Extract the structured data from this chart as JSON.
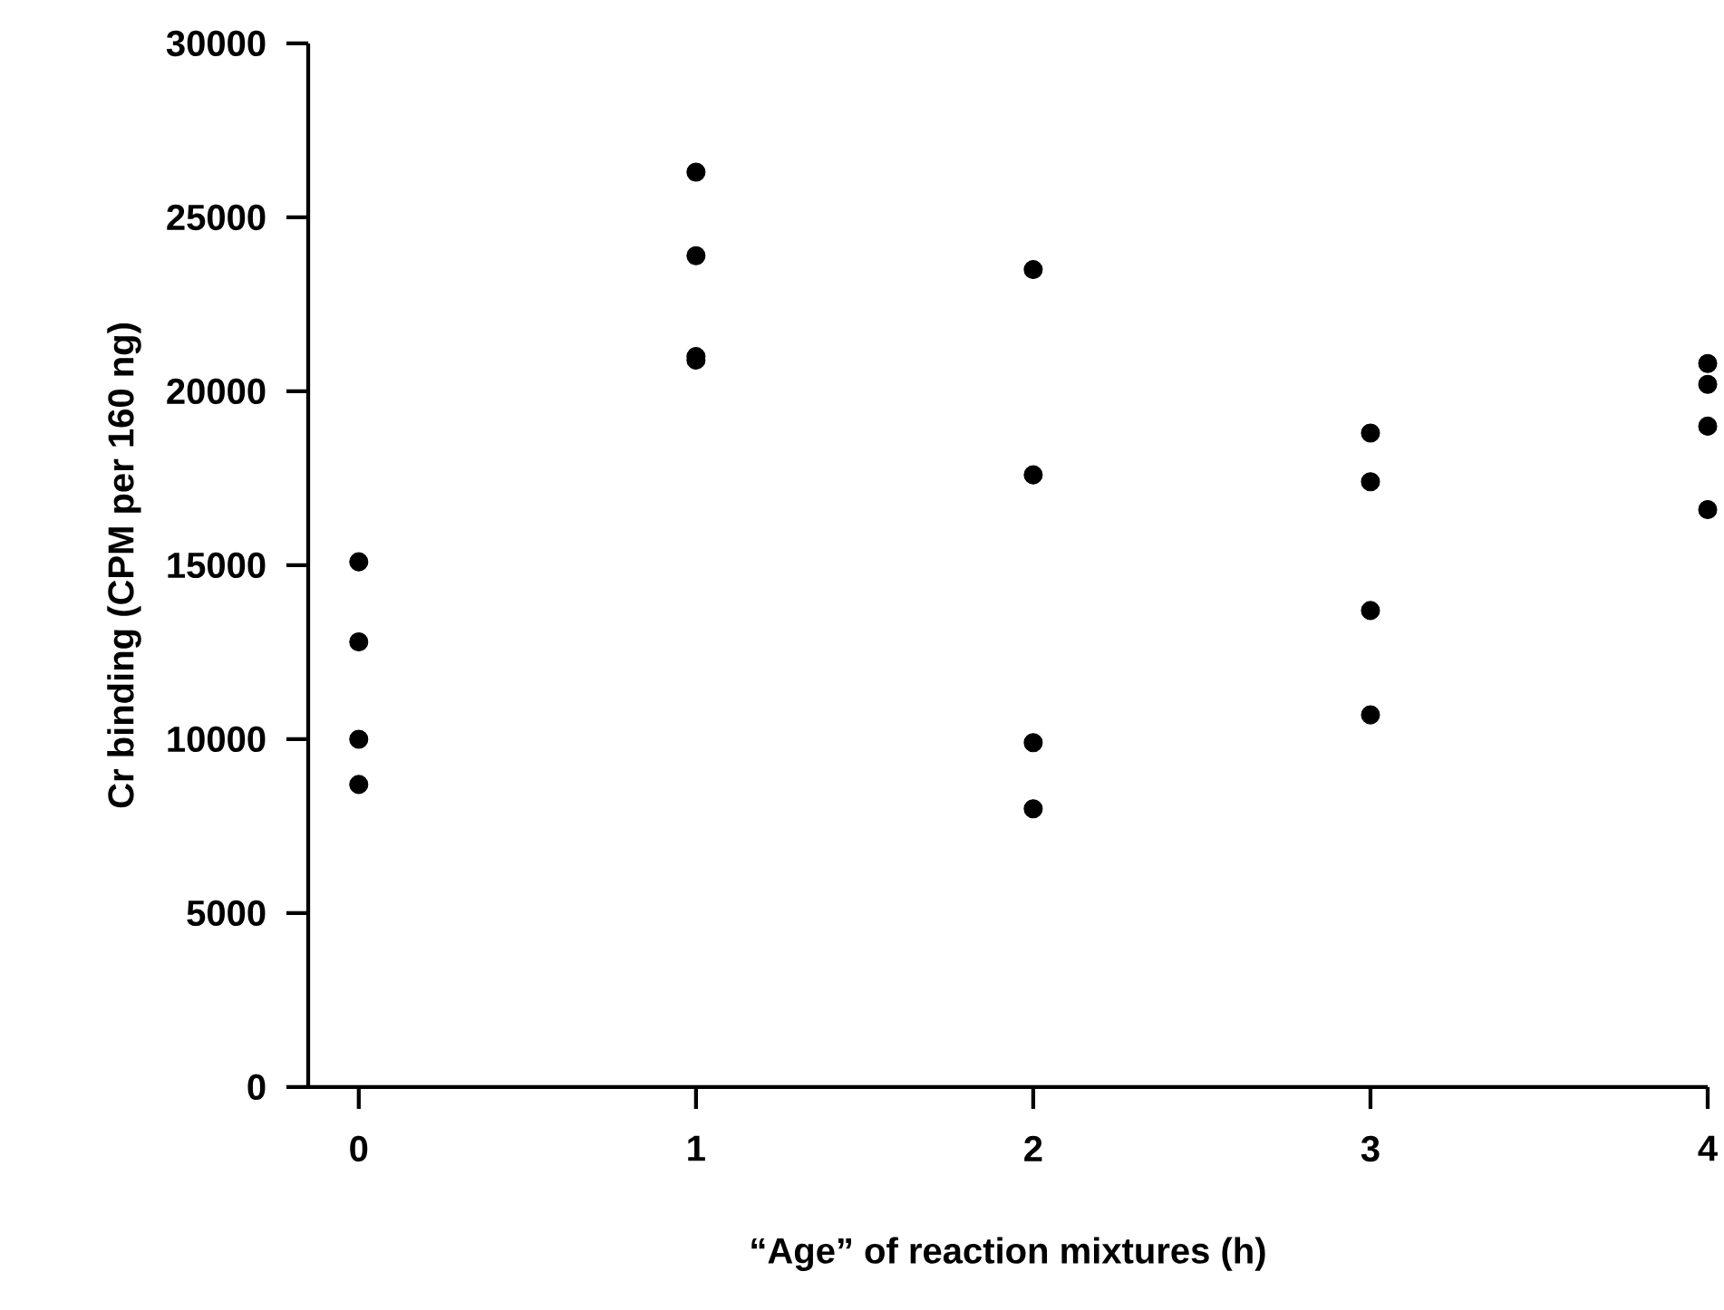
{
  "chart_data": {
    "type": "scatter",
    "xlabel": "“Age” of reaction mixtures (h)",
    "ylabel": "Cr binding (CPM per 160 ng)",
    "x": [
      0,
      0,
      0,
      0,
      1,
      1,
      1,
      1,
      2,
      2,
      2,
      2,
      3,
      3,
      3,
      3,
      4,
      4,
      4,
      4
    ],
    "values": [
      15100,
      12800,
      10000,
      8700,
      26300,
      23900,
      21000,
      20900,
      23500,
      17600,
      9900,
      8000,
      18800,
      17400,
      13700,
      10700,
      20800,
      20200,
      19000,
      16600
    ],
    "color": "#000000",
    "xlim": [
      -0.15,
      4
    ],
    "ylim": [
      0,
      30000
    ],
    "xticks": [
      0,
      1,
      2,
      3,
      4
    ],
    "yticks": [
      0,
      5000,
      10000,
      15000,
      20000,
      25000,
      30000
    ]
  }
}
